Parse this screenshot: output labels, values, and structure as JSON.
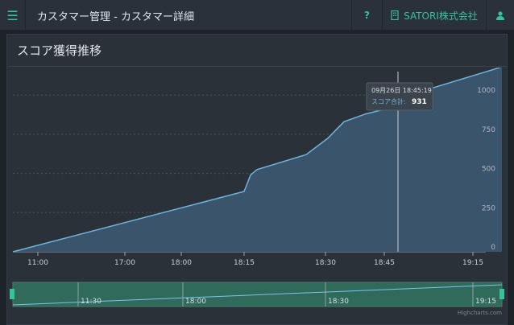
{
  "header": {
    "menu_icon": "hamburger-icon",
    "title": "カスタマー管理 - カスタマー詳細",
    "help_label": "?",
    "company_icon": "building-icon",
    "company_label": "SATORI株式会社",
    "user_icon": "user-icon",
    "accent": "#36c39a"
  },
  "panel": {
    "title": "スコア獲得推移"
  },
  "chart_data": {
    "type": "area",
    "title": "",
    "x_ticks": [
      "11:00",
      "17:00",
      "18:00",
      "18:15",
      "18:30",
      "18:45",
      "19:15"
    ],
    "y_ticks": [
      0,
      250,
      500,
      750,
      1000
    ],
    "ylim": [
      0,
      1150
    ],
    "series": [
      {
        "name": "スコア合計",
        "points": [
          {
            "x": "開始",
            "y": 0
          },
          {
            "x": "18:15",
            "y": 385
          },
          {
            "x": "18:16",
            "y": 490
          },
          {
            "x": "18:18",
            "y": 525
          },
          {
            "x": "18:30",
            "y": 620
          },
          {
            "x": "18:31",
            "y": 725
          },
          {
            "x": "18:34",
            "y": 830
          },
          {
            "x": "18:38",
            "y": 880
          },
          {
            "x": "18:45:19",
            "y": 931
          },
          {
            "x": "18:50",
            "y": 1010
          },
          {
            "x": "終了",
            "y": 1180
          }
        ]
      }
    ],
    "tooltip": {
      "date": "09月26日 18:45:19",
      "label": "スコア合計:",
      "value": "931"
    },
    "navigator_ticks": [
      "11:30",
      "18:00",
      "18:30",
      "19:15"
    ],
    "credit": "Highcharts.com",
    "line_color": "#6fb3dd",
    "fill_color": "#3a546c",
    "navigator_color": "#2f6a5b",
    "grid": true
  }
}
